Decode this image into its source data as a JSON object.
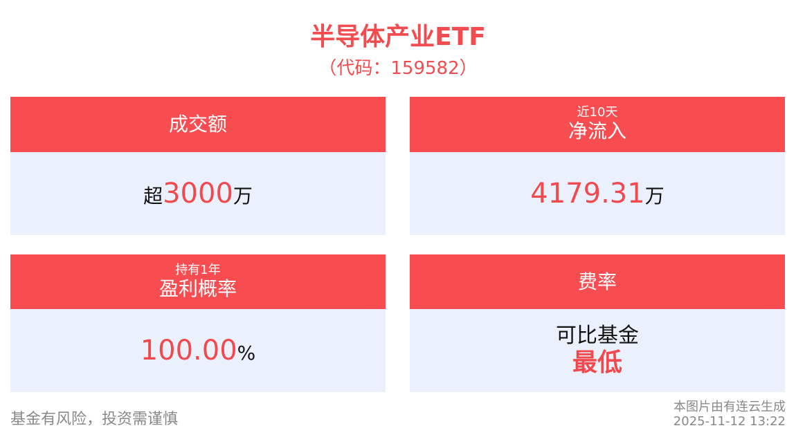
{
  "header": {
    "title": "半导体产业ETF",
    "code": "（代码：159582）"
  },
  "cards": [
    {
      "title": "成交额",
      "prefix": "超",
      "number": "3000",
      "unit": "万"
    },
    {
      "subtitle": "近10天",
      "title": "净流入",
      "number": "4179.31",
      "unit": "万"
    },
    {
      "subtitle": "持有1年",
      "title": "盈利概率",
      "number": "100.00",
      "unit": "%"
    },
    {
      "title": "费率",
      "line1": "可比基金",
      "line2": "最低"
    }
  ],
  "footer": {
    "disclaimer": "基金有风险，投资需谨慎",
    "source": "本图片由有连云生成",
    "timestamp": "2025-11-12 13:22"
  }
}
